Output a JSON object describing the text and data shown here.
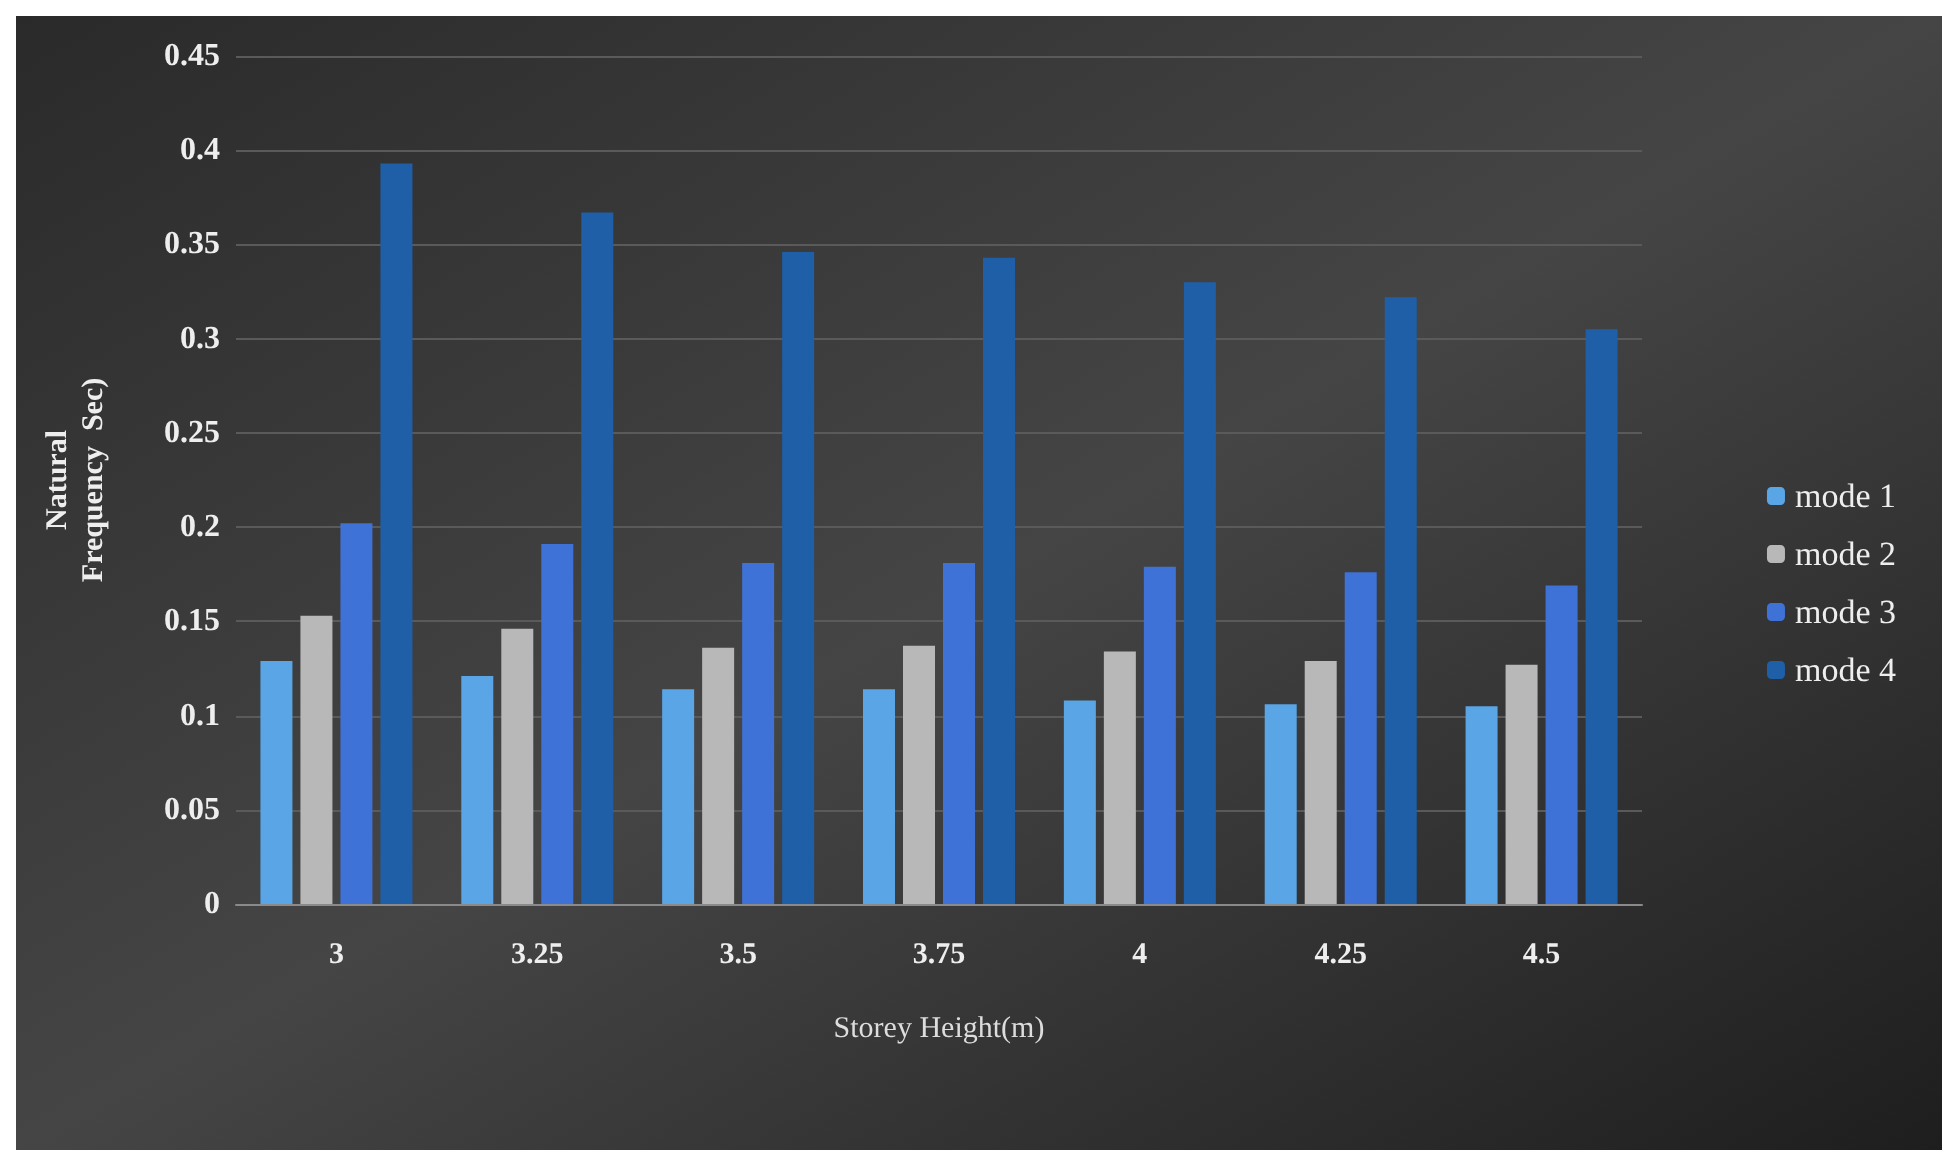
{
  "chart_data": {
    "type": "bar",
    "xlabel": "Storey Height(m)",
    "ylabel": "Natural\nFrequency  Sec)",
    "categories": [
      "3",
      "3.25",
      "3.5",
      "3.75",
      "4",
      "4.25",
      "4.5"
    ],
    "series": [
      {
        "name": "mode 1",
        "color": "#5aa5e6",
        "values": [
          0.129,
          0.121,
          0.114,
          0.114,
          0.108,
          0.106,
          0.105
        ]
      },
      {
        "name": "mode 2",
        "color": "#b8b8b8",
        "values": [
          0.153,
          0.146,
          0.136,
          0.137,
          0.134,
          0.129,
          0.127
        ]
      },
      {
        "name": "mode 3",
        "color": "#3f72d6",
        "values": [
          0.202,
          0.191,
          0.181,
          0.181,
          0.179,
          0.176,
          0.169
        ]
      },
      {
        "name": "mode 4",
        "color": "#1f5fa8",
        "values": [
          0.393,
          0.367,
          0.346,
          0.343,
          0.33,
          0.322,
          0.305
        ]
      }
    ],
    "ylim": [
      0,
      0.45
    ],
    "yticks": [
      0,
      0.05,
      0.1,
      0.15,
      0.2,
      0.25,
      0.3,
      0.35,
      0.4,
      0.45
    ],
    "grid": "y",
    "legend": "right"
  }
}
